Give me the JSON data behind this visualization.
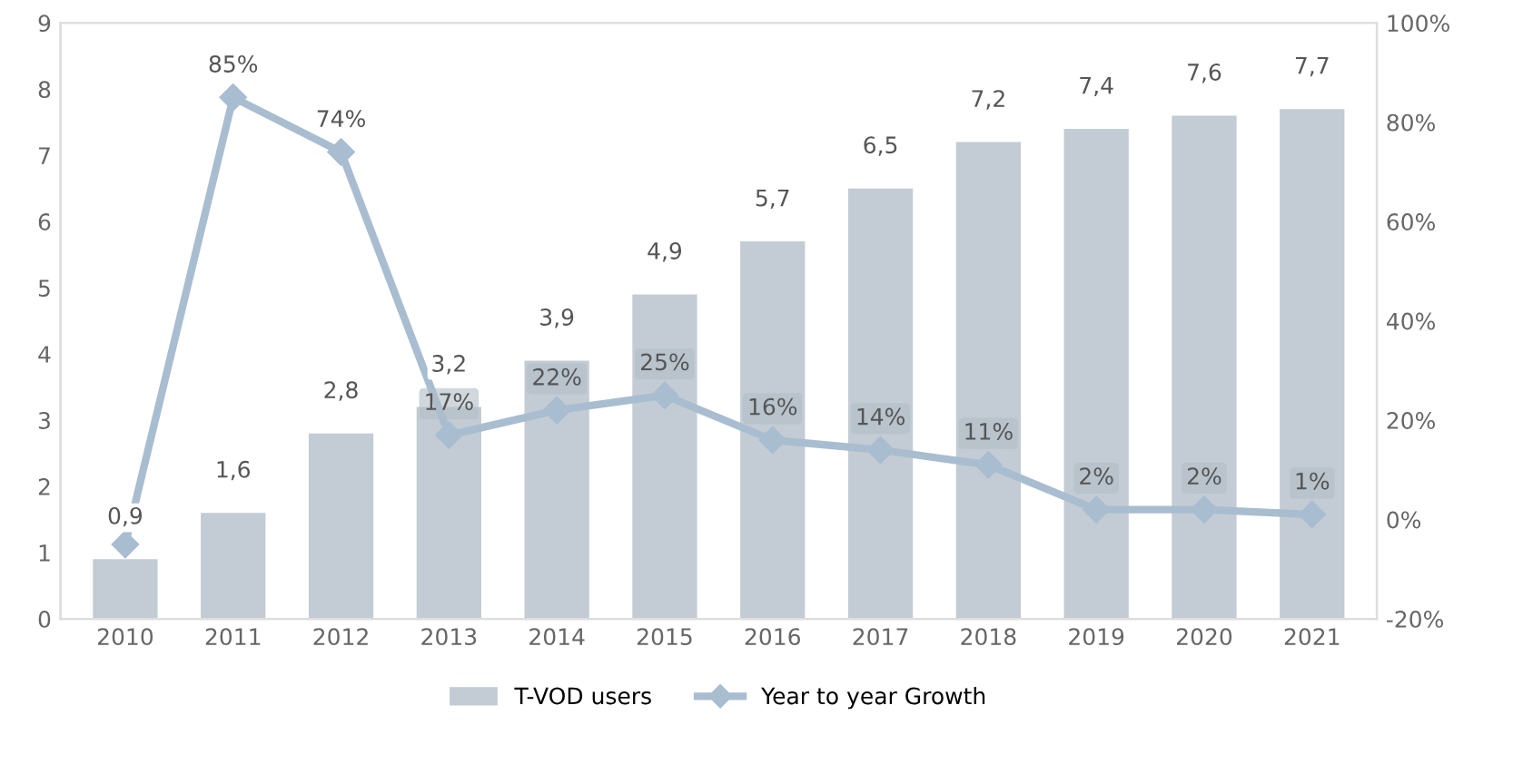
{
  "chart_data": {
    "type": "bar",
    "categories": [
      "2010",
      "2011",
      "2012",
      "2013",
      "2014",
      "2015",
      "2016",
      "2017",
      "2018",
      "2019",
      "2020",
      "2021"
    ],
    "series": [
      {
        "name": "T-VOD users",
        "color": "#c3ccd4",
        "values": [
          0.9,
          1.6,
          2.8,
          3.2,
          3.9,
          4.9,
          5.7,
          6.5,
          7.2,
          7.4,
          7.6,
          7.7
        ],
        "value_labels": [
          "0,9",
          "1,6",
          "2,8",
          "3,2",
          "3,9",
          "4,9",
          "5,7",
          "6,5",
          "7,2",
          "7,4",
          "7,6",
          "7,7"
        ]
      },
      {
        "name": "Year to year Growth",
        "type": "line",
        "axis": "y2",
        "color": "#a9bdd0",
        "marker": "diamond",
        "values": [
          -5,
          85,
          74,
          17,
          22,
          25,
          16,
          14,
          11,
          2,
          2,
          1
        ],
        "value_labels": [
          null,
          "85%",
          "74%",
          "17%",
          "22%",
          "25%",
          "16%",
          "14%",
          "11%",
          "2%",
          "2%",
          "1%"
        ]
      }
    ],
    "ylim": [
      0,
      9
    ],
    "yticks": [
      0,
      1,
      2,
      3,
      4,
      5,
      6,
      7,
      8,
      9
    ],
    "y2lim": [
      -20,
      100
    ],
    "y2ticks": [
      {
        "value": -20,
        "label": "-20%"
      },
      {
        "value": 0,
        "label": "0%"
      },
      {
        "value": 20,
        "label": "20%"
      },
      {
        "value": 40,
        "label": "40%"
      },
      {
        "value": 60,
        "label": "60%"
      },
      {
        "value": 80,
        "label": "80%"
      },
      {
        "value": 100,
        "label": "100%"
      }
    ],
    "legend": "bottom"
  }
}
